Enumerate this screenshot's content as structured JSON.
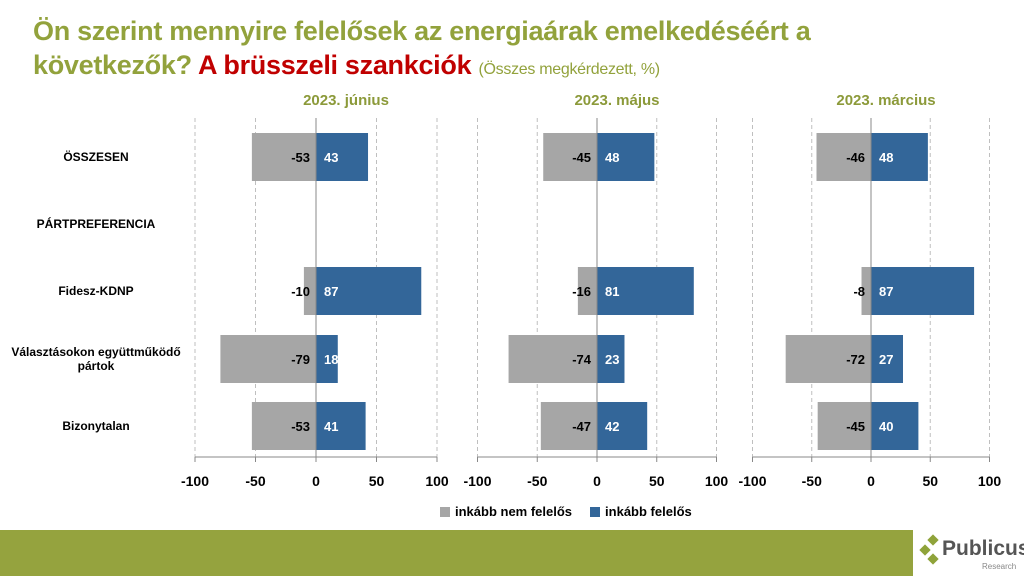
{
  "title": {
    "line1": "Ön szerint mennyire felelősek az energiaárak emelkedéséért a",
    "line2": "következők?",
    "highlight": "A brüsszeli szankciók",
    "subtitle": "(Összes megkérdezett, %)"
  },
  "colors": {
    "negative": "#a6a6a6",
    "positive": "#336699",
    "title": "#92a23c",
    "highlight": "#c00000",
    "footer": "#95a33e"
  },
  "chart_data": {
    "type": "bar",
    "orientation": "horizontal-diverging",
    "categories": [
      "ÖSSZESEN",
      "PÁRTPREFERENCIA",
      "Fidesz-KDNP",
      "Választásokon együttműködő pártok",
      "Bizonytalan"
    ],
    "xlim": [
      -100,
      100
    ],
    "xticks": [
      "-100",
      "-50",
      "0",
      "50",
      "100"
    ],
    "grid": true,
    "legend_placement": "bottom",
    "series_names": [
      "inkább nem felelős",
      "inkább felelős"
    ],
    "panels": [
      {
        "title": "2023. június",
        "negative": [
          -53,
          null,
          -10,
          -79,
          -53
        ],
        "positive": [
          43,
          null,
          87,
          18,
          41
        ]
      },
      {
        "title": "2023. május",
        "negative": [
          -45,
          null,
          -16,
          -74,
          -47
        ],
        "positive": [
          48,
          null,
          81,
          23,
          42
        ]
      },
      {
        "title": "2023. március",
        "negative": [
          -46,
          null,
          -8,
          -72,
          -45
        ],
        "positive": [
          48,
          null,
          87,
          27,
          40
        ]
      }
    ]
  },
  "logo": {
    "name": "Publicus",
    "sub": "Research"
  }
}
